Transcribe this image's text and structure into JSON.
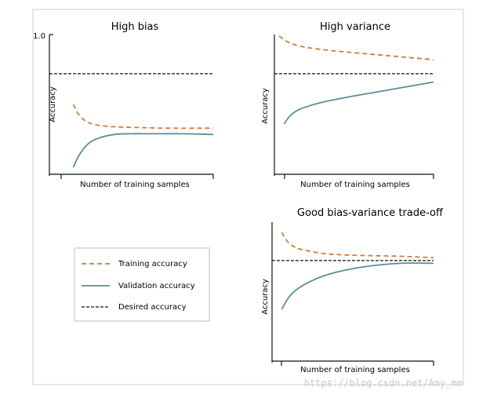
{
  "colors": {
    "training": "#c8803a",
    "validation": "#5a8f96",
    "desired": "#111111",
    "axis": "#111111",
    "frame": "#cfcfcf"
  },
  "legend": {
    "training": "Training accuracy",
    "validation": "Validation accuracy",
    "desired": "Desired accuracy"
  },
  "watermark": "https://blog.csdn.net/Amy_mm",
  "chart_data": [
    {
      "id": "high-bias",
      "type": "line",
      "title": "High bias",
      "xlabel": "Number of training samples",
      "ylabel": "Accuracy",
      "ytick_label": "1.0",
      "xlim": [
        0,
        1
      ],
      "ylim": [
        0,
        1
      ],
      "desired": 0.72,
      "series": [
        {
          "name": "Training accuracy",
          "x": [
            0.08,
            0.12,
            0.18,
            0.25,
            0.35,
            0.5,
            0.7,
            1.0
          ],
          "values": [
            0.5,
            0.42,
            0.37,
            0.35,
            0.34,
            0.335,
            0.33,
            0.33
          ]
        },
        {
          "name": "Validation accuracy",
          "x": [
            0.08,
            0.12,
            0.18,
            0.25,
            0.35,
            0.45,
            0.6,
            0.8,
            1.0
          ],
          "values": [
            0.05,
            0.14,
            0.22,
            0.26,
            0.285,
            0.29,
            0.29,
            0.29,
            0.285
          ]
        }
      ]
    },
    {
      "id": "high-variance",
      "type": "line",
      "title": "High variance",
      "xlabel": "Number of training samples",
      "ylabel": "Accuracy",
      "xlim": [
        0,
        1
      ],
      "ylim": [
        0,
        1
      ],
      "desired": 0.72,
      "series": [
        {
          "name": "Training accuracy",
          "x": [
            0.03,
            0.08,
            0.15,
            0.25,
            0.4,
            0.6,
            0.8,
            1.0
          ],
          "values": [
            0.99,
            0.95,
            0.92,
            0.9,
            0.88,
            0.86,
            0.84,
            0.82
          ]
        },
        {
          "name": "Validation accuracy",
          "x": [
            0.06,
            0.1,
            0.15,
            0.22,
            0.32,
            0.45,
            0.6,
            0.8,
            1.0
          ],
          "values": [
            0.36,
            0.42,
            0.46,
            0.49,
            0.52,
            0.55,
            0.58,
            0.62,
            0.66
          ]
        }
      ]
    },
    {
      "id": "good-fit",
      "type": "line",
      "title": "Good bias-variance trade-off",
      "xlabel": "Number of training samples",
      "ylabel": "Accuracy",
      "xlim": [
        0,
        1
      ],
      "ylim": [
        0,
        1
      ],
      "desired": 0.72,
      "series": [
        {
          "name": "Training accuracy",
          "x": [
            0.06,
            0.1,
            0.15,
            0.22,
            0.32,
            0.45,
            0.6,
            0.8,
            1.0
          ],
          "values": [
            0.92,
            0.85,
            0.81,
            0.79,
            0.77,
            0.76,
            0.755,
            0.75,
            0.74
          ]
        },
        {
          "name": "Validation accuracy",
          "x": [
            0.06,
            0.1,
            0.15,
            0.22,
            0.32,
            0.45,
            0.6,
            0.8,
            1.0
          ],
          "values": [
            0.37,
            0.45,
            0.51,
            0.56,
            0.61,
            0.65,
            0.68,
            0.7,
            0.7
          ]
        }
      ]
    }
  ]
}
